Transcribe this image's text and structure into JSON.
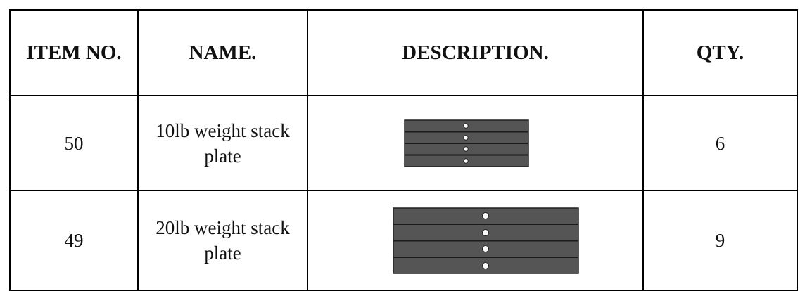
{
  "table": {
    "header": [
      "ITEM NO.",
      "NAME.",
      "DESCRIPTION.",
      "QTY."
    ],
    "rows": [
      {
        "item_no": "50",
        "name": "10lb weight stack plate",
        "qty": "6"
      },
      {
        "item_no": "49",
        "name": "20lb weight stack plate",
        "qty": "9"
      }
    ]
  }
}
